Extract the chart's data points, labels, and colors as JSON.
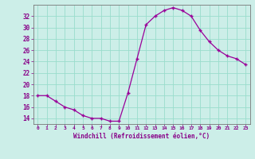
{
  "hours": [
    0,
    1,
    2,
    3,
    4,
    5,
    6,
    7,
    8,
    9,
    10,
    11,
    12,
    13,
    14,
    15,
    16,
    17,
    18,
    19,
    20,
    21,
    22,
    23
  ],
  "values": [
    18,
    18,
    17,
    16,
    15.5,
    14.5,
    14,
    14,
    13.5,
    13.5,
    18.5,
    24.5,
    30.5,
    32,
    33,
    33.5,
    33,
    32,
    29.5,
    27.5,
    26,
    25,
    24.5,
    23.5
  ],
  "line_color": "#990099",
  "marker": "+",
  "marker_size": 3,
  "bg_color": "#cceee8",
  "grid_color": "#99ddcc",
  "xlabel": "Windchill (Refroidissement éolien,°C)",
  "xlabel_color": "#880088",
  "ylim": [
    13,
    34
  ],
  "yticks": [
    14,
    16,
    18,
    20,
    22,
    24,
    26,
    28,
    30,
    32
  ],
  "xlim": [
    -0.5,
    23.5
  ],
  "tick_color": "#880088",
  "spine_color": "#777777"
}
